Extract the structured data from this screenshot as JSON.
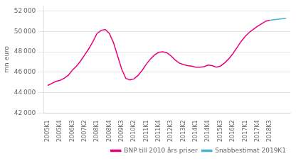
{
  "chart_data": {
    "type": "line",
    "ylabel": "mn euro",
    "xlim": [
      -1,
      59
    ],
    "xticks": [
      {
        "value": 0,
        "label": "2005K1"
      },
      {
        "value": 3,
        "label": "2005K4"
      },
      {
        "value": 6,
        "label": "2006K3"
      },
      {
        "value": 9,
        "label": "2007K2"
      },
      {
        "value": 12,
        "label": "2008K1"
      },
      {
        "value": 15,
        "label": "2008K4"
      },
      {
        "value": 18,
        "label": "2009K3"
      },
      {
        "value": 21,
        "label": "2010K2"
      },
      {
        "value": 24,
        "label": "2011K1"
      },
      {
        "value": 27,
        "label": "2011K4"
      },
      {
        "value": 30,
        "label": "2012K3"
      },
      {
        "value": 33,
        "label": "2013K2"
      },
      {
        "value": 36,
        "label": "2014K1"
      },
      {
        "value": 39,
        "label": "2014K4"
      },
      {
        "value": 42,
        "label": "2015K3"
      },
      {
        "value": 45,
        "label": "2016K2"
      },
      {
        "value": 48,
        "label": "2017K1"
      },
      {
        "value": 51,
        "label": "2017K4"
      },
      {
        "value": 54,
        "label": "2018K3"
      }
    ],
    "ylim": [
      42000,
      52500
    ],
    "yticks": [
      {
        "value": 42000,
        "label": "42 000"
      },
      {
        "value": 44000,
        "label": "44 000"
      },
      {
        "value": 46000,
        "label": "46 000"
      },
      {
        "value": 48000,
        "label": "48 000"
      },
      {
        "value": 50000,
        "label": "50 000"
      },
      {
        "value": 52000,
        "label": "52 000"
      }
    ],
    "grid": "y",
    "legend": "lower right",
    "series": [
      {
        "name": "BNP till 2010 års priser",
        "color": "#e8007d",
        "x": [
          0,
          1,
          2,
          3,
          4,
          5,
          6,
          7,
          8,
          9,
          10,
          11,
          12,
          13,
          14,
          15,
          16,
          17,
          18,
          19,
          20,
          21,
          22,
          23,
          24,
          25,
          26,
          27,
          28,
          29,
          30,
          31,
          32,
          33,
          34,
          35,
          36,
          37,
          38,
          39,
          40,
          41,
          42,
          43,
          44,
          45,
          46,
          47,
          48,
          49,
          50,
          51,
          52,
          53,
          54
        ],
        "values": [
          44700,
          44900,
          45100,
          45200,
          45400,
          45700,
          46200,
          46600,
          47100,
          47700,
          48300,
          49000,
          49800,
          50100,
          50200,
          49800,
          48900,
          47600,
          46300,
          45400,
          45250,
          45350,
          45700,
          46200,
          46800,
          47300,
          47700,
          47950,
          48000,
          47900,
          47600,
          47200,
          46900,
          46750,
          46650,
          46600,
          46500,
          46500,
          46550,
          46700,
          46650,
          46500,
          46600,
          46900,
          47300,
          47800,
          48400,
          49000,
          49500,
          49900,
          50200,
          50500,
          50750,
          51000,
          51100
        ]
      },
      {
        "name": "Snabbestimat 2019K1",
        "color": "#4ab3d4",
        "x": [
          54,
          58
        ],
        "values": [
          51100,
          51300
        ]
      }
    ]
  }
}
